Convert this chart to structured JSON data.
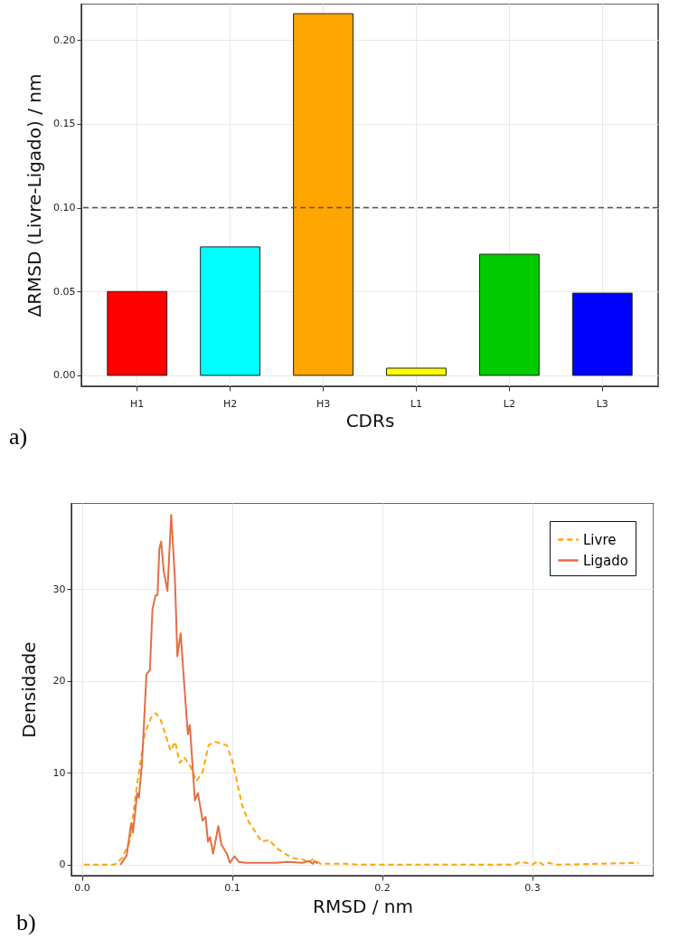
{
  "chart_data": [
    {
      "type": "bar",
      "xlabel": "CDRs",
      "ylabel": "ΔRMSD (Livre-Ligado) / nm",
      "categories": [
        "H1",
        "H2",
        "H3",
        "L1",
        "L2",
        "L3"
      ],
      "values": [
        0.05,
        0.0766,
        0.2156,
        0.0043,
        0.0722,
        0.049
      ],
      "colors": [
        "#ff0000",
        "#00ffff",
        "#ffa500",
        "#ffff00",
        "#00cc00",
        "#0000ff"
      ],
      "ylim": [
        -0.0065,
        0.2216
      ],
      "yticks": [
        {
          "value": 0,
          "label": "0.00"
        },
        {
          "value": 0.05,
          "label": "0.05"
        },
        {
          "value": 0.1,
          "label": "0.10"
        },
        {
          "value": 0.15,
          "label": "0.15"
        },
        {
          "value": 0.2,
          "label": "0.20"
        }
      ],
      "ref_lines": [
        {
          "axis": "y",
          "value": 0.1,
          "color": "#555555",
          "line_style": "dashed"
        }
      ],
      "grid": true,
      "annotations": [
        "a)"
      ]
    },
    {
      "type": "line",
      "xlabel": "RMSD / nm",
      "ylabel": "Densidade",
      "legend": "top right",
      "grid": true,
      "annotations": [
        "b)"
      ],
      "xlim": [
        -0.007,
        0.381
      ],
      "xticks": [
        {
          "value": 0,
          "label": "0.0"
        },
        0.1,
        0.2,
        0.3
      ],
      "ylim": [
        -1.2,
        39.4
      ],
      "yticks": [
        0,
        10,
        20,
        30
      ],
      "series": [
        {
          "name": "Livre",
          "color": "#ffa500",
          "line_style": "dashed",
          "x": [
            0.0014,
            0.0217,
            0.0267,
            0.0318,
            0.0368,
            0.0419,
            0.046,
            0.049,
            0.052,
            0.056,
            0.0591,
            0.0621,
            0.0652,
            0.0682,
            0.0723,
            0.0763,
            0.0804,
            0.0844,
            0.0885,
            0.0925,
            0.0966,
            0.1006,
            0.1036,
            0.1067,
            0.1107,
            0.1158,
            0.1198,
            0.1249,
            0.129,
            0.135,
            0.141,
            0.147,
            0.151,
            0.154,
            0.159,
            0.175,
            0.185,
            0.2,
            0.28,
            0.288,
            0.292,
            0.296,
            0.3,
            0.304,
            0.307,
            0.311,
            0.316,
            0.371
          ],
          "values": [
            0,
            0,
            0.7,
            2.5,
            8.8,
            14.3,
            16,
            16.5,
            16,
            14,
            12.4,
            13.4,
            11.1,
            11.7,
            10.7,
            9.1,
            10.1,
            13,
            13.4,
            13.2,
            13,
            11.1,
            8.8,
            6.5,
            4.8,
            3.5,
            2.5,
            2.7,
            1.9,
            1.2,
            0.7,
            0.6,
            0.2,
            0.6,
            0.1,
            0.1,
            0,
            0,
            0,
            0,
            0.3,
            0.2,
            0,
            0.4,
            0,
            0.2,
            0,
            0.2
          ]
        },
        {
          "name": "Ligado",
          "color": "#e26f46",
          "line_style": "solid",
          "x": [
            0.0257,
            0.0298,
            0.0328,
            0.034,
            0.0368,
            0.038,
            0.04,
            0.043,
            0.0453,
            0.047,
            0.049,
            0.0504,
            0.0516,
            0.0528,
            0.0545,
            0.057,
            0.0595,
            0.062,
            0.0636,
            0.0658,
            0.0682,
            0.0706,
            0.0719,
            0.0753,
            0.0773,
            0.0804,
            0.0824,
            0.084,
            0.0854,
            0.0874,
            0.0909,
            0.0929,
            0.0966,
            0.0986,
            0.1016,
            0.1047,
            0.1087,
            0.119,
            0.129,
            0.137,
            0.147,
            0.151,
            0.154,
            0.155,
            0.157
          ],
          "values": [
            0,
            1.0,
            4.5,
            3.5,
            7.8,
            7.3,
            11,
            20.7,
            21.2,
            27.8,
            29.3,
            29.4,
            34.4,
            35.2,
            32,
            29.8,
            38.1,
            31.1,
            22.7,
            25.2,
            19.6,
            14.2,
            15.2,
            7,
            7.8,
            4.8,
            5.2,
            2.5,
            3,
            1.2,
            4.2,
            2.2,
            1.2,
            0.2,
            0.9,
            0.3,
            0.2,
            0.2,
            0.2,
            0.3,
            0.2,
            0.4,
            0.1,
            0.4,
            0.1
          ]
        }
      ]
    }
  ]
}
